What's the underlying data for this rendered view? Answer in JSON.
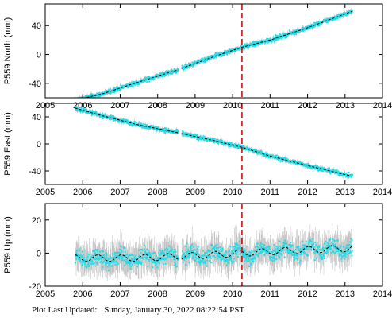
{
  "footer": {
    "label": "Plot Last Updated:",
    "timestamp": "Sunday, January 30, 2022 08:22:54 PST"
  },
  "chart_data": [
    {
      "type": "scatter",
      "ylabel": "P559 North (mm)",
      "xlim": [
        2005,
        2014
      ],
      "ylim": [
        -60,
        70
      ],
      "x_ticks": [
        2005,
        2006,
        2007,
        2008,
        2009,
        2010,
        2011,
        2012,
        2013,
        2014
      ],
      "y_ticks": [
        -40,
        0,
        40
      ],
      "event_line_x": 2010.25,
      "data_start": 2005.8,
      "data_end": 2013.2,
      "gap": [
        2008.55,
        2008.65
      ],
      "series": [
        {
          "name": "",
          "x": [
            2005.8,
            2006.5,
            2007.5,
            2008.5,
            2009.5,
            2010.25,
            2011.0,
            2012.0,
            2013.2
          ],
          "values": [
            -63,
            -55,
            -38,
            -22,
            -3,
            10,
            20,
            37,
            60
          ]
        }
      ],
      "noise": 3,
      "error": 3,
      "colors": {
        "points": "#22dde8",
        "errorbars": "#9a9a9a",
        "model": "#000000",
        "event": "#cc0000"
      }
    },
    {
      "type": "scatter",
      "ylabel": "P559 East (mm)",
      "xlim": [
        2005,
        2014
      ],
      "ylim": [
        -60,
        60
      ],
      "x_ticks": [
        2005,
        2006,
        2007,
        2008,
        2009,
        2010,
        2011,
        2012,
        2013,
        2014
      ],
      "y_ticks": [
        -40,
        0,
        40
      ],
      "event_line_x": 2010.25,
      "data_start": 2005.8,
      "data_end": 2013.2,
      "gap": [
        2008.55,
        2008.65
      ],
      "series": [
        {
          "name": "",
          "x": [
            2005.8,
            2006.5,
            2007.5,
            2008.5,
            2009.5,
            2010.25,
            2011.0,
            2012.0,
            2013.2
          ],
          "values": [
            53,
            42,
            28,
            17,
            5,
            -5,
            -18,
            -32,
            -48
          ]
        }
      ],
      "noise": 3,
      "error": 3,
      "colors": {
        "points": "#22dde8",
        "errorbars": "#9a9a9a",
        "model": "#000000",
        "event": "#cc0000"
      }
    },
    {
      "type": "scatter",
      "ylabel": "P559 Up (mm)",
      "xlim": [
        2005,
        2014
      ],
      "ylim": [
        -20,
        30
      ],
      "x_ticks": [
        2005,
        2006,
        2007,
        2008,
        2009,
        2010,
        2011,
        2012,
        2013,
        2014
      ],
      "y_ticks": [
        -20,
        0,
        20
      ],
      "event_line_x": 2010.25,
      "data_start": 2005.8,
      "data_end": 2013.2,
      "gap": [
        2008.55,
        2008.65
      ],
      "series": [
        {
          "name": "",
          "x": [
            2005.8,
            2006.5,
            2007.5,
            2008.5,
            2009.5,
            2010.25,
            2011.0,
            2012.0,
            2013.2
          ],
          "values": [
            -3,
            -3,
            -3,
            -2,
            -1,
            0,
            1,
            2,
            3
          ]
        }
      ],
      "seasonal_amplitude": 2,
      "noise": 5,
      "error": 8,
      "colors": {
        "points": "#22dde8",
        "errorbars": "#9a9a9a",
        "model": "#000000",
        "event": "#cc0000"
      }
    }
  ]
}
